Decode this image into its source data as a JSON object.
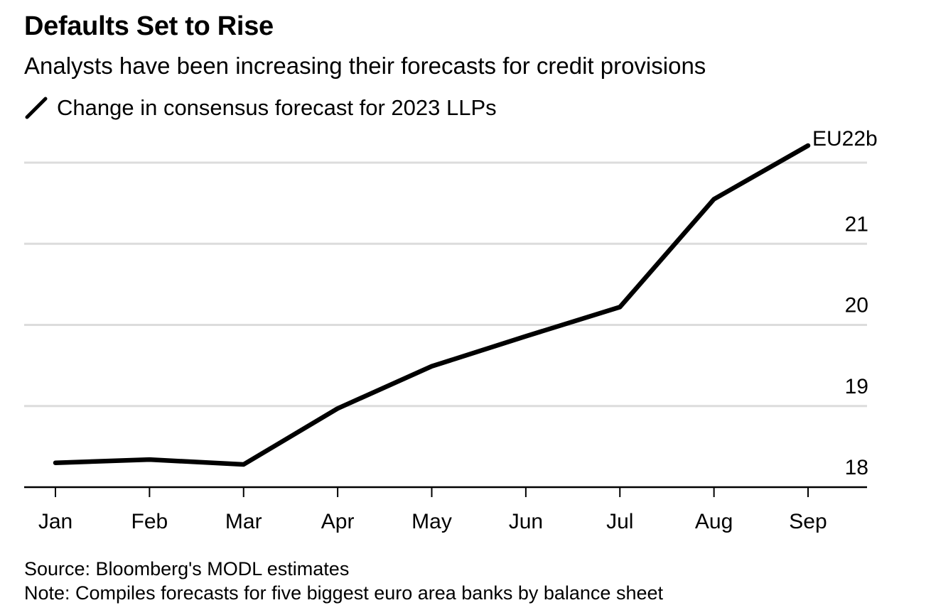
{
  "header": {
    "title": "Defaults Set to Rise",
    "subtitle": "Analysts have been increasing their forecasts for credit provisions"
  },
  "legend": {
    "icon": "line-swatch-icon",
    "label": "Change in consensus forecast for 2023 LLPs"
  },
  "footer": {
    "source": "Source: Bloomberg's MODL estimates",
    "note": "Note: Compiles forecasts for five biggest euro area banks by balance sheet"
  },
  "colors": {
    "line": "#000000",
    "grid": "#dcdcdc",
    "axis": "#000000"
  },
  "chart_data": {
    "type": "line",
    "title": "Defaults Set to Rise",
    "subtitle": "Analysts have been increasing their forecasts for credit provisions",
    "xlabel": "",
    "ylabel": "",
    "categories": [
      "Jan",
      "Feb",
      "Mar",
      "Apr",
      "May",
      "Jun",
      "Jul",
      "Aug",
      "Sep"
    ],
    "series": [
      {
        "name": "Change in consensus forecast for 2023 LLPs",
        "values": [
          18.3,
          18.34,
          18.28,
          18.97,
          19.49,
          19.86,
          20.22,
          21.55,
          22.21
        ]
      }
    ],
    "ylim": [
      18,
      22
    ],
    "yticks": [
      18,
      19,
      20,
      21,
      22
    ],
    "ytick_labels": [
      "18",
      "19",
      "20",
      "21",
      "EU22b"
    ],
    "end_label": "EU22b",
    "grid": true,
    "y_axis_side": "right",
    "legend_position": "top-left"
  }
}
